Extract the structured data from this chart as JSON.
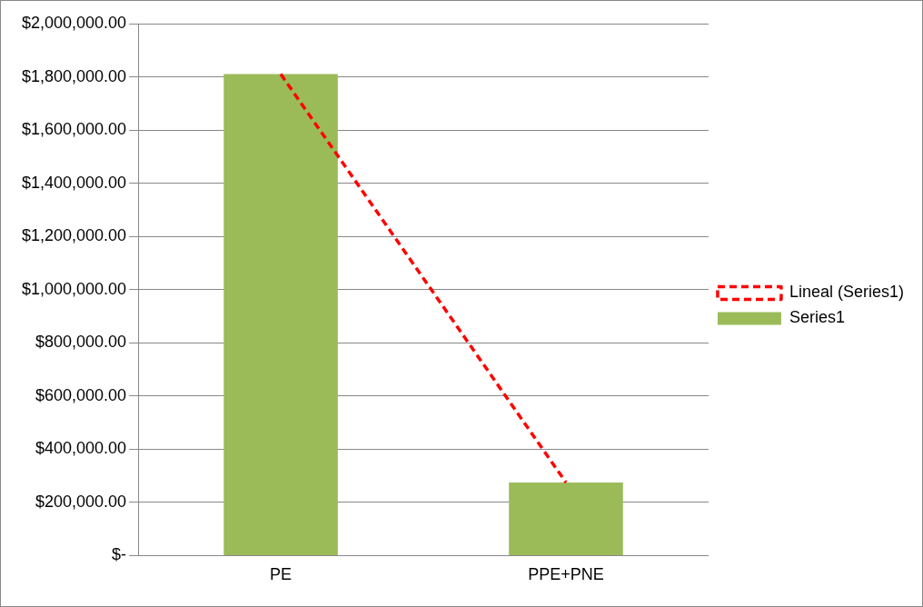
{
  "chart_data": {
    "type": "bar",
    "categories": [
      "PE",
      "PPE+PNE"
    ],
    "series": [
      {
        "name": "Series1",
        "color": "#9bbb59",
        "values": [
          1810000,
          275000
        ]
      },
      {
        "name": "Lineal (Series1)",
        "type": "line",
        "color": "#ff0000",
        "x": [
          "PE",
          "PPE+PNE"
        ],
        "values": [
          1810000,
          275000
        ]
      }
    ],
    "ylim": [
      0,
      2000000
    ],
    "yticks": [
      {
        "value": 0,
        "label": "$-"
      },
      {
        "value": 200000,
        "label": "$200,000.00"
      },
      {
        "value": 400000,
        "label": "$400,000.00"
      },
      {
        "value": 600000,
        "label": "$600,000.00"
      },
      {
        "value": 800000,
        "label": "$800,000.00"
      },
      {
        "value": 1000000,
        "label": "$1,000,000.00"
      },
      {
        "value": 1200000,
        "label": "$1,200,000.00"
      },
      {
        "value": 1400000,
        "label": "$1,400,000.00"
      },
      {
        "value": 1600000,
        "label": "$1,600,000.00"
      },
      {
        "value": 1800000,
        "label": "$1,800,000.00"
      },
      {
        "value": 2000000,
        "label": "$2,000,000.00"
      }
    ],
    "grid": "y",
    "legend": "right",
    "line_style": "dashed"
  }
}
